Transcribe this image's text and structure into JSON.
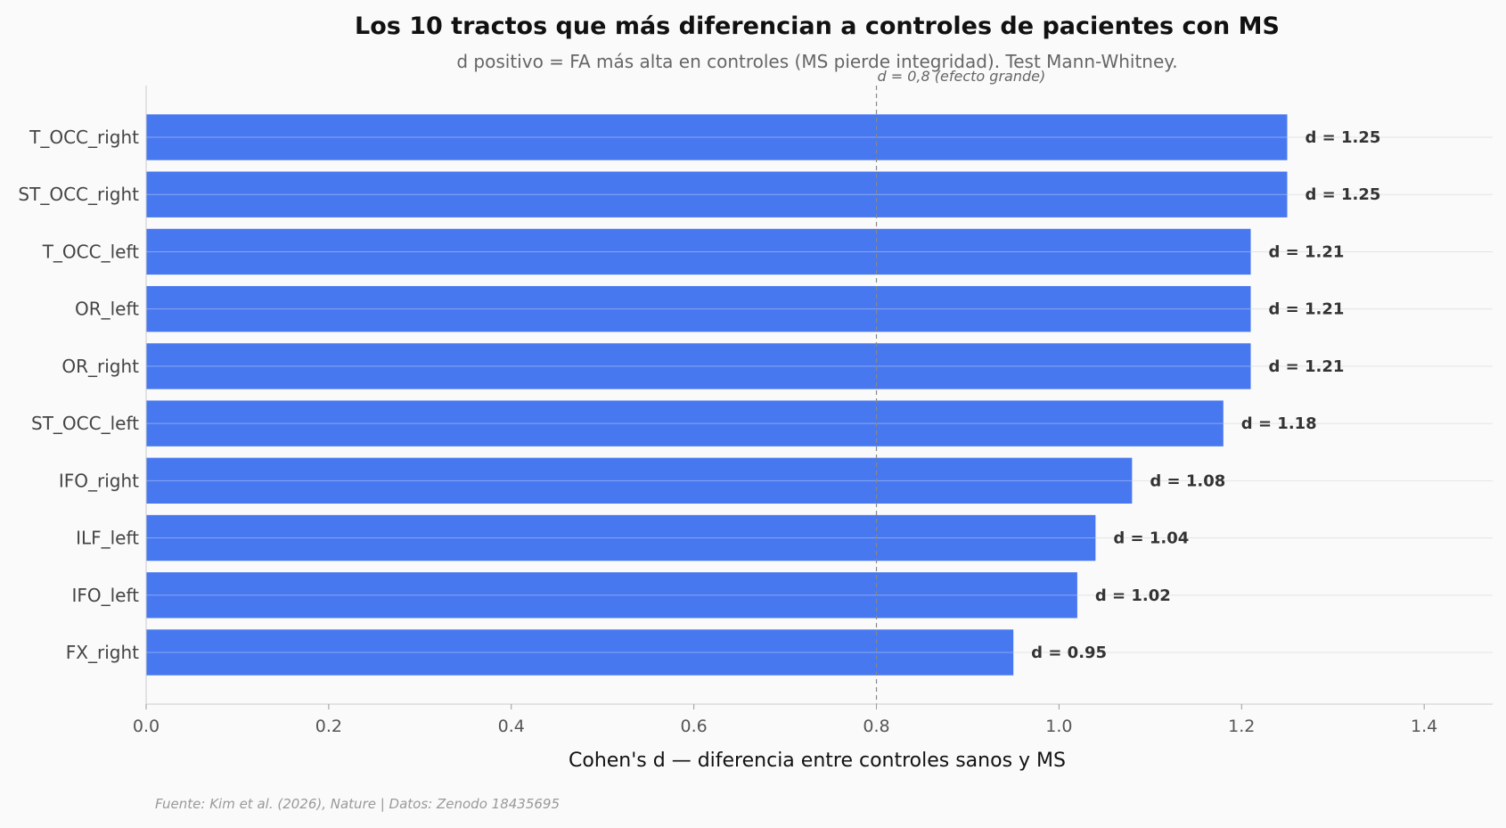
{
  "chart_data": {
    "type": "bar",
    "orientation": "horizontal",
    "title": "Los 10 tractos que más diferencian a controles de pacientes con MS",
    "subtitle": "d positivo = FA más alta en controles (MS pierde integridad). Test Mann-Whitney.",
    "xlabel": "Cohen's d — diferencia entre controles sanos y MS",
    "ylabel": "",
    "categories": [
      "T_OCC_right",
      "ST_OCC_right",
      "T_OCC_left",
      "OR_left",
      "OR_right",
      "ST_OCC_left",
      "IFO_right",
      "ILF_left",
      "IFO_left",
      "FX_right"
    ],
    "values": [
      1.25,
      1.25,
      1.21,
      1.21,
      1.21,
      1.18,
      1.08,
      1.04,
      1.02,
      0.95
    ],
    "value_labels": [
      "d = 1.25",
      "d = 1.25",
      "d = 1.21",
      "d = 1.21",
      "d = 1.21",
      "d = 1.18",
      "d = 1.08",
      "d = 1.04",
      "d = 1.02",
      "d = 0.95"
    ],
    "xlim": [
      0,
      1.475
    ],
    "xticks": [
      0.0,
      0.2,
      0.4,
      0.6,
      0.8,
      1.0,
      1.2,
      1.4
    ],
    "xtick_labels": [
      "0.0",
      "0.2",
      "0.4",
      "0.6",
      "0.8",
      "1.0",
      "1.2",
      "1.4"
    ],
    "reference_line": {
      "value": 0.8,
      "label": "d = 0,8 (efecto grande)",
      "style": "dashed"
    },
    "grid": {
      "x": false,
      "y": true
    },
    "legend": "none",
    "bar_color": "#4878ef",
    "source": "Fuente: Kim et al. (2026), Nature | Datos: Zenodo 18435695"
  }
}
